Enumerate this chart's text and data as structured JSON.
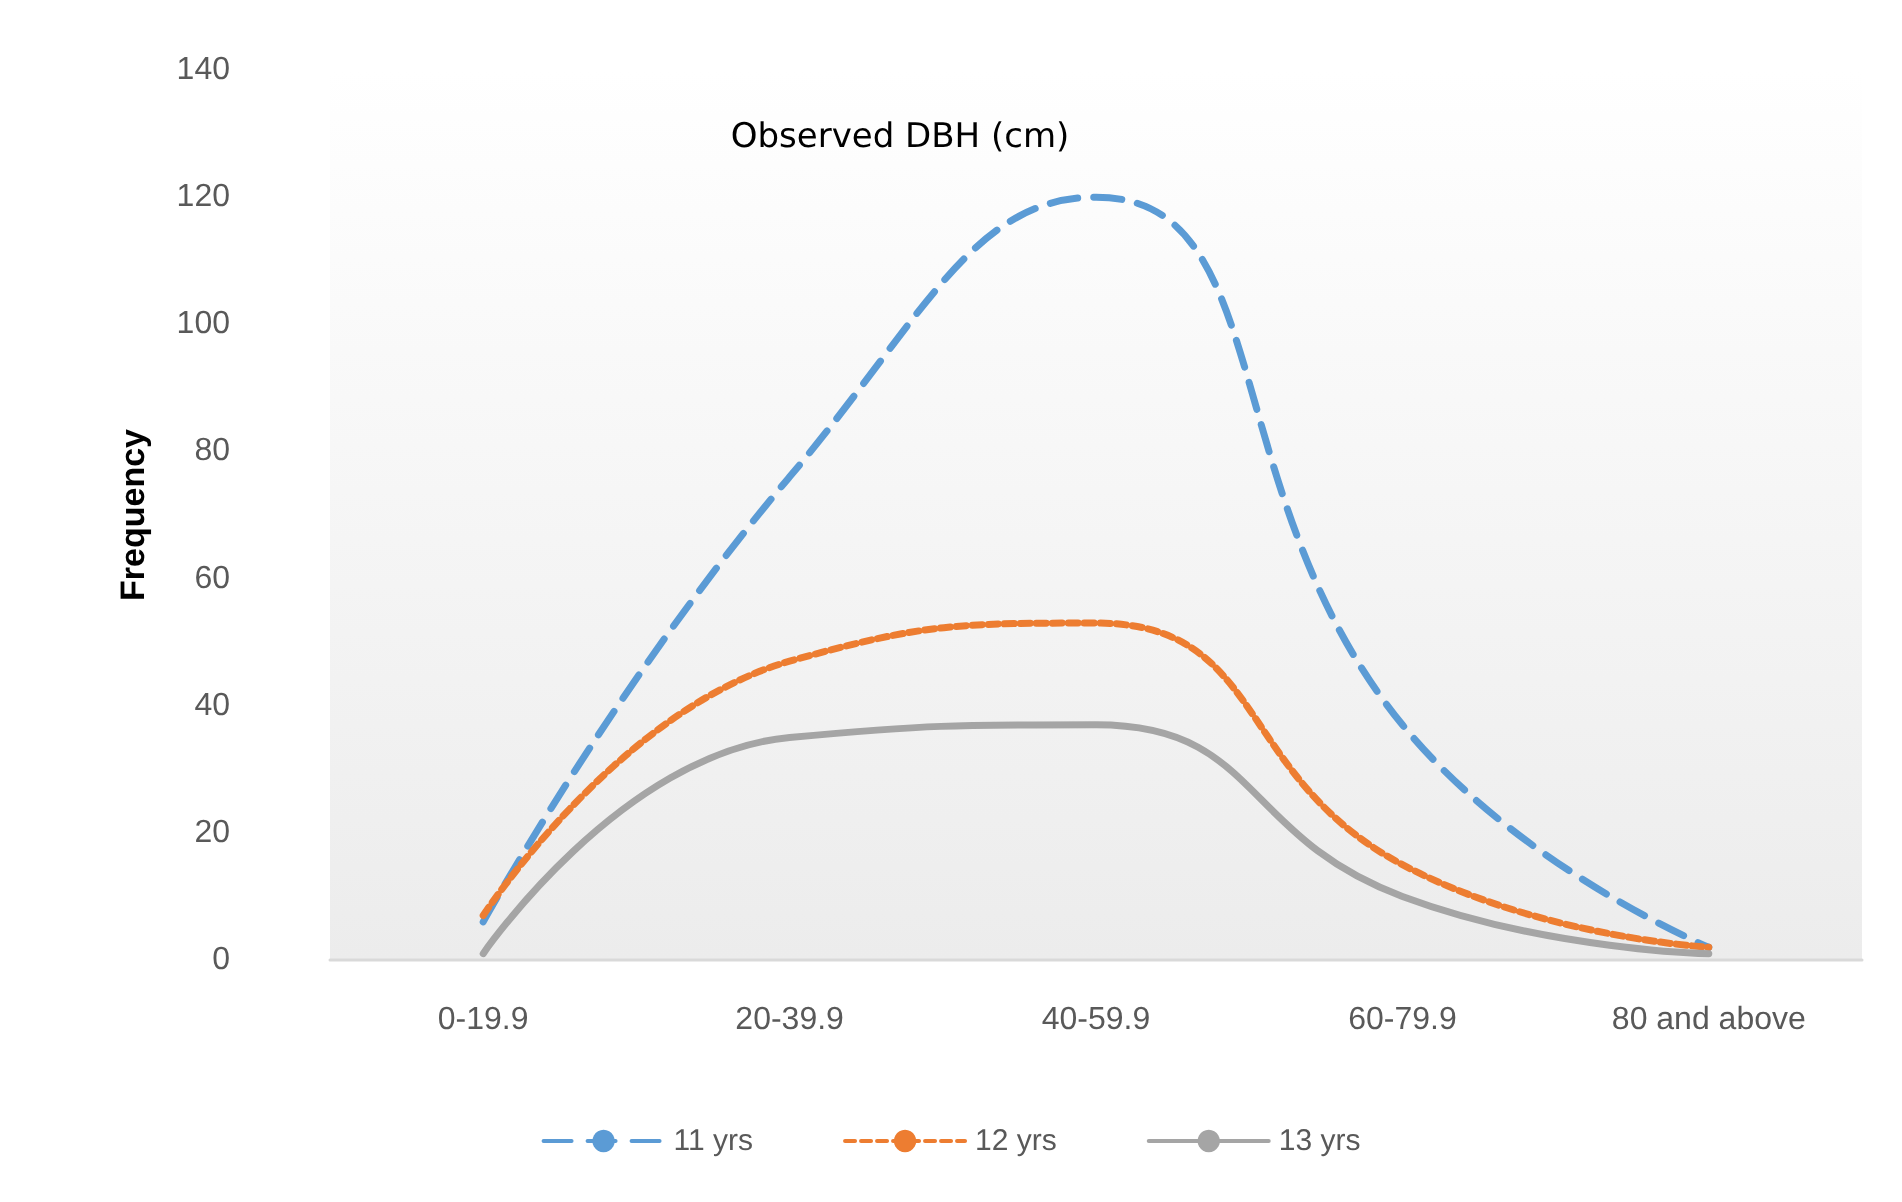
{
  "chart_data": {
    "type": "line",
    "title": "Observed DBH (cm)",
    "ylabel": "Frequency",
    "categories": [
      "0-19.9",
      "20-39.9",
      "40-59.9",
      "60-79.9",
      "80 and above"
    ],
    "series": [
      {
        "name": "11 yrs",
        "color": "#5b9bd5",
        "line_style": "dashed",
        "values": [
          6,
          76,
          120,
          37,
          2
        ]
      },
      {
        "name": "12 yrs",
        "color": "#ed7d31",
        "line_style": "dotted",
        "values": [
          7,
          47,
          53,
          15,
          2
        ]
      },
      {
        "name": "13 yrs",
        "color": "#a5a5a5",
        "line_style": "solid",
        "values": [
          1,
          35,
          37,
          10,
          1
        ]
      }
    ],
    "ylim": [
      0,
      140
    ],
    "yticks": [
      0,
      20,
      40,
      60,
      80,
      100,
      120,
      140
    ],
    "grid": false,
    "legend": "bottom",
    "marker": "none"
  }
}
